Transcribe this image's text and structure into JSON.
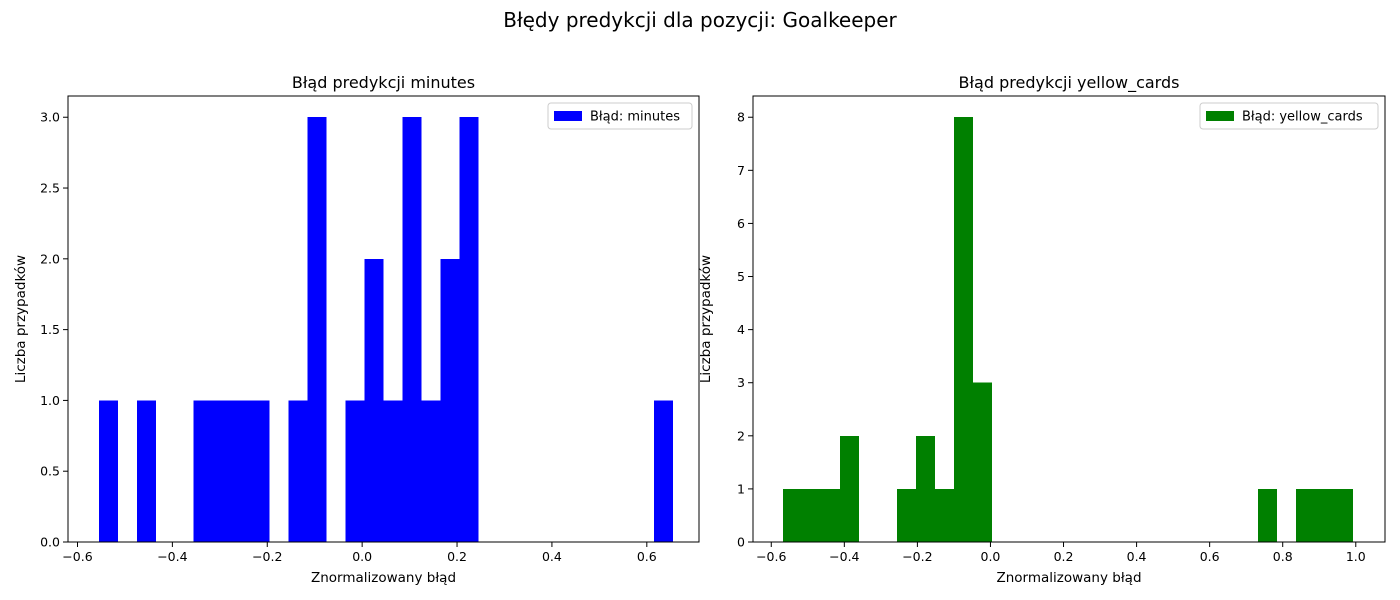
{
  "suptitle": "Błędy predykcji dla pozycji: Goalkeeper",
  "chart_data": [
    {
      "type": "bar",
      "title": "Błąd predykcji minutes",
      "xlabel": "Znormalizowany błąd",
      "ylabel": "Liczba przypadków",
      "color": "#0000ff",
      "legend_label": "Błąd: minutes",
      "legend_position": "upper right",
      "xlim": [
        -0.62,
        0.71
      ],
      "ylim": [
        0,
        3.15
      ],
      "xticks": [
        -0.6,
        -0.4,
        -0.2,
        0.0,
        0.2,
        0.4,
        0.6
      ],
      "xtick_labels": [
        "−0.6",
        "−0.4",
        "−0.2",
        "0.0",
        "0.2",
        "0.4",
        "0.6"
      ],
      "yticks": [
        0,
        0.5,
        1.0,
        1.5,
        2.0,
        2.5,
        3.0
      ],
      "ytick_labels": [
        "0.0",
        "0.5",
        "1.0",
        "1.5",
        "2.0",
        "2.5",
        "3.0"
      ],
      "bin_width": 0.04,
      "bins": [
        {
          "x0": -0.555,
          "count": 1
        },
        {
          "x0": -0.475,
          "count": 1
        },
        {
          "x0": -0.355,
          "count": 1
        },
        {
          "x0": -0.315,
          "count": 1
        },
        {
          "x0": -0.275,
          "count": 1
        },
        {
          "x0": -0.235,
          "count": 1
        },
        {
          "x0": -0.155,
          "count": 1
        },
        {
          "x0": -0.115,
          "count": 3
        },
        {
          "x0": -0.035,
          "count": 1
        },
        {
          "x0": 0.005,
          "count": 2
        },
        {
          "x0": 0.045,
          "count": 1
        },
        {
          "x0": 0.085,
          "count": 3
        },
        {
          "x0": 0.125,
          "count": 1
        },
        {
          "x0": 0.165,
          "count": 2
        },
        {
          "x0": 0.205,
          "count": 3
        },
        {
          "x0": 0.615,
          "count": 1
        }
      ]
    },
    {
      "type": "bar",
      "title": "Błąd predykcji yellow_cards",
      "xlabel": "Znormalizowany błąd",
      "ylabel": "Liczba przypadków",
      "color": "#008000",
      "legend_label": "Błąd: yellow_cards",
      "legend_position": "upper right",
      "xlim": [
        -0.65,
        1.08
      ],
      "ylim": [
        0,
        8.4
      ],
      "xticks": [
        -0.6,
        -0.4,
        -0.2,
        0.0,
        0.2,
        0.4,
        0.6,
        0.8,
        1.0
      ],
      "xtick_labels": [
        "−0.6",
        "−0.4",
        "−0.2",
        "0.0",
        "0.2",
        "0.4",
        "0.6",
        "0.8",
        "1.0"
      ],
      "yticks": [
        0,
        1,
        2,
        3,
        4,
        5,
        6,
        7,
        8
      ],
      "ytick_labels": [
        "0",
        "1",
        "2",
        "3",
        "4",
        "5",
        "6",
        "7",
        "8"
      ],
      "bin_width": 0.052,
      "bins": [
        {
          "x0": -0.568,
          "count": 1
        },
        {
          "x0": -0.516,
          "count": 1
        },
        {
          "x0": -0.464,
          "count": 1
        },
        {
          "x0": -0.412,
          "count": 2
        },
        {
          "x0": -0.256,
          "count": 1
        },
        {
          "x0": -0.204,
          "count": 2
        },
        {
          "x0": -0.152,
          "count": 1
        },
        {
          "x0": -0.1,
          "count": 8
        },
        {
          "x0": -0.048,
          "count": 3
        },
        {
          "x0": 0.732,
          "count": 1
        },
        {
          "x0": 0.836,
          "count": 1
        },
        {
          "x0": 0.888,
          "count": 1
        },
        {
          "x0": 0.94,
          "count": 1
        }
      ]
    }
  ]
}
